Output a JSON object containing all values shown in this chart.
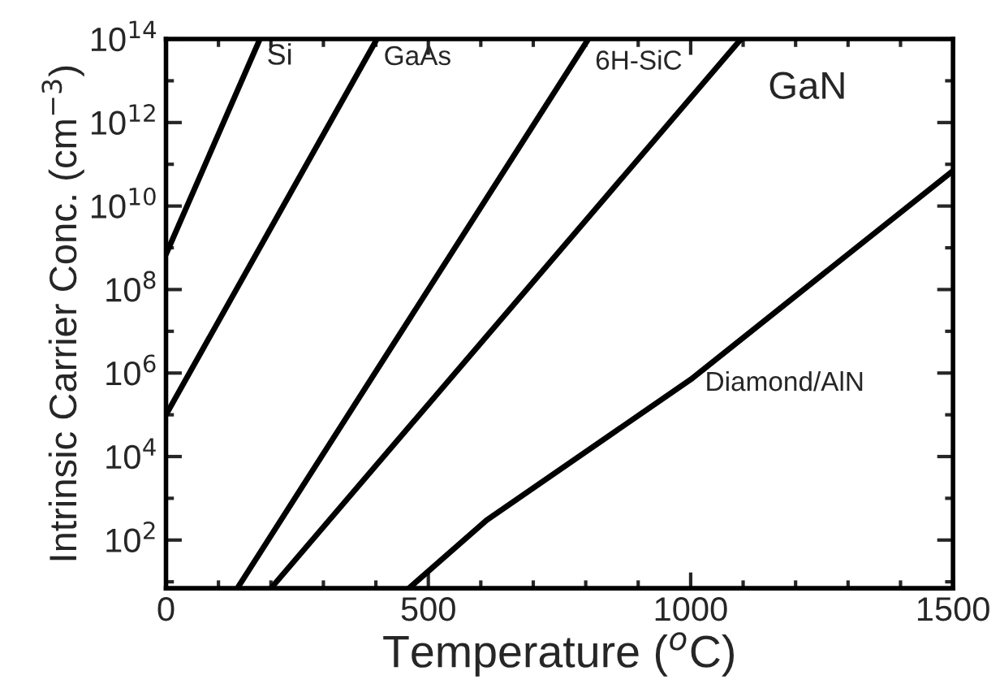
{
  "chart_data": {
    "type": "line",
    "xlabel": "Temperature ($^{o}$C)",
    "ylabel": "Intrinsic Carrier Conc. (cm$^{−3}$)",
    "log": "y",
    "xlim": [
      0,
      1500
    ],
    "ylim": [
      7,
      100000000000000.0
    ],
    "xticks": [
      0,
      500,
      1000,
      1500
    ],
    "yticks": [
      {
        "value": 100,
        "label": "10$^{2}$"
      },
      {
        "value": 10000,
        "label": "10$^{4}$"
      },
      {
        "value": 1000000,
        "label": "10$^{6}$"
      },
      {
        "value": 100000000,
        "label": "10$^{8}$"
      },
      {
        "value": 10000000000,
        "label": "10$^{10}$"
      },
      {
        "value": 1000000000000,
        "label": "10$^{12}$"
      },
      {
        "value": 100000000000000,
        "label": "10$^{14}$"
      }
    ],
    "grid": false,
    "legend": false,
    "marker": "none",
    "line_style": "solid",
    "series": [
      {
        "name": "Si",
        "color": "#000000",
        "x": [
          0,
          179
        ],
        "values": [
          700000000.0,
          100000000000000.0
        ]
      },
      {
        "name": "GaAs",
        "color": "#000000",
        "x": [
          0,
          402
        ],
        "values": [
          100000.0,
          100000000000000.0
        ]
      },
      {
        "name": "6H-SiC",
        "color": "#000000",
        "x": [
          136,
          805
        ],
        "values": [
          7,
          100000000000000.0
        ]
      },
      {
        "name": "GaN",
        "color": "#000000",
        "x": [
          200,
          1096
        ],
        "values": [
          7,
          100000000000000.0
        ]
      },
      {
        "name": "Diamond/AlN",
        "color": "#000000",
        "x": [
          463,
          611,
          1000,
          1500
        ],
        "values": [
          7,
          300,
          700000.0,
          70000000000.0
        ]
      }
    ]
  }
}
